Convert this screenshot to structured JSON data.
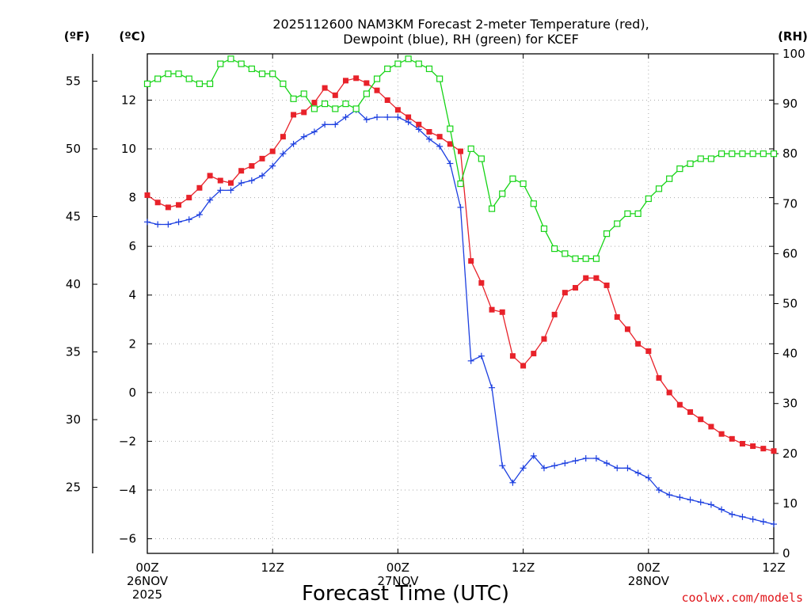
{
  "chart_data": {
    "type": "line",
    "title_lines": [
      "2025112600 NAM3KM Forecast 2-meter Temperature (red),",
      "Dewpoint (blue), RH (green) for KCEF"
    ],
    "xlabel": "Forecast Time (UTC)",
    "credit": "coolwx.com/models",
    "units": {
      "f": "(ºF)",
      "c": "(ºC)",
      "rh": "(RH)"
    },
    "x_unit": "forecast hour",
    "xlim": [
      0,
      60
    ],
    "c_axis": {
      "range": [
        -6.6,
        13.9
      ],
      "ticks": [
        -6,
        -4,
        -2,
        0,
        2,
        4,
        6,
        8,
        10,
        12
      ],
      "tick_labels": [
        "−6",
        "−4",
        "−2",
        "0",
        "2",
        "4",
        "6",
        "8",
        "10",
        "12"
      ]
    },
    "f_axis": {
      "ticks": [
        25,
        30,
        35,
        40,
        45,
        50,
        55
      ],
      "tick_labels": [
        "25",
        "30",
        "35",
        "40",
        "45",
        "50",
        "55"
      ]
    },
    "rh_axis": {
      "range": [
        0,
        100
      ],
      "ticks": [
        0,
        10,
        20,
        30,
        40,
        50,
        60,
        70,
        80,
        90,
        100
      ],
      "tick_labels": [
        "0",
        "10",
        "20",
        "30",
        "40",
        "50",
        "60",
        "70",
        "80",
        "90",
        "100"
      ]
    },
    "x_ticks": [
      {
        "hour": 0,
        "lines": [
          "00Z",
          "26NOV",
          "2025"
        ]
      },
      {
        "hour": 12,
        "lines": [
          "12Z"
        ]
      },
      {
        "hour": 24,
        "lines": [
          "00Z",
          "27NOV"
        ]
      },
      {
        "hour": 36,
        "lines": [
          "12Z"
        ]
      },
      {
        "hour": 48,
        "lines": [
          "00Z",
          "28NOV"
        ]
      },
      {
        "hour": 60,
        "lines": [
          "12Z"
        ]
      }
    ],
    "grid": true,
    "colors": {
      "temperature": "#e8222a",
      "dewpoint": "#1c3fe0",
      "rh": "#16d416",
      "grid": "#aaaaaa",
      "credit": "#e0151a"
    },
    "series": [
      {
        "name": "Temperature",
        "units": "°C",
        "marker": "filled-square",
        "color": "#e8222a",
        "x": [
          0,
          1,
          2,
          3,
          4,
          5,
          6,
          7,
          8,
          9,
          10,
          11,
          12,
          13,
          14,
          15,
          16,
          17,
          18,
          19,
          20,
          21,
          22,
          23,
          24,
          25,
          26,
          27,
          28,
          29,
          30,
          31,
          32,
          33,
          34,
          35,
          36,
          37,
          38,
          39,
          40,
          41,
          42,
          43,
          44,
          45,
          46,
          47,
          48,
          49,
          50,
          51,
          52,
          53,
          54,
          55,
          56,
          57,
          58,
          59,
          60
        ],
        "values": [
          8.1,
          7.8,
          7.6,
          7.7,
          8.0,
          8.4,
          8.9,
          8.7,
          8.6,
          9.1,
          9.3,
          9.6,
          9.9,
          10.5,
          11.4,
          11.5,
          11.9,
          12.5,
          12.2,
          12.8,
          12.9,
          12.7,
          12.4,
          12.0,
          11.6,
          11.3,
          11.0,
          10.7,
          10.5,
          10.2,
          9.9,
          5.4,
          4.5,
          3.4,
          3.3,
          1.5,
          1.1,
          1.6,
          2.2,
          3.2,
          4.1,
          4.3,
          4.7,
          4.7,
          4.4,
          3.1,
          2.6,
          2.0,
          1.7,
          0.6,
          0.0,
          -0.5,
          -0.8,
          -1.1,
          -1.4,
          -1.7,
          -1.9,
          -2.1,
          -2.2,
          -2.3,
          -2.4
        ]
      },
      {
        "name": "Dewpoint",
        "units": "°C",
        "marker": "plus",
        "color": "#1c3fe0",
        "x": [
          0,
          1,
          2,
          3,
          4,
          5,
          6,
          7,
          8,
          9,
          10,
          11,
          12,
          13,
          14,
          15,
          16,
          17,
          18,
          19,
          20,
          21,
          22,
          23,
          24,
          25,
          26,
          27,
          28,
          29,
          30,
          31,
          32,
          33,
          34,
          35,
          36,
          37,
          38,
          39,
          40,
          41,
          42,
          43,
          44,
          45,
          46,
          47,
          48,
          49,
          50,
          51,
          52,
          53,
          54,
          55,
          56,
          57,
          58,
          59,
          60
        ],
        "values": [
          7.0,
          6.9,
          6.9,
          7.0,
          7.1,
          7.3,
          7.9,
          8.3,
          8.3,
          8.6,
          8.7,
          8.9,
          9.3,
          9.8,
          10.2,
          10.5,
          10.7,
          11.0,
          11.0,
          11.3,
          11.6,
          11.2,
          11.3,
          11.3,
          11.3,
          11.1,
          10.8,
          10.4,
          10.1,
          9.4,
          7.6,
          1.3,
          1.5,
          0.2,
          -3.0,
          -3.7,
          -3.1,
          -2.6,
          -3.1,
          -3.0,
          -2.9,
          -2.8,
          -2.7,
          -2.7,
          -2.9,
          -3.1,
          -3.1,
          -3.3,
          -3.5,
          -4.0,
          -4.2,
          -4.3,
          -4.4,
          -4.5,
          -4.6,
          -4.8,
          -5.0,
          -5.1,
          -5.2,
          -5.3,
          -5.4
        ]
      },
      {
        "name": "RH",
        "units": "%",
        "marker": "open-square",
        "color": "#16d416",
        "x": [
          0,
          1,
          2,
          3,
          4,
          5,
          6,
          7,
          8,
          9,
          10,
          11,
          12,
          13,
          14,
          15,
          16,
          17,
          18,
          19,
          20,
          21,
          22,
          23,
          24,
          25,
          26,
          27,
          28,
          29,
          30,
          31,
          32,
          33,
          34,
          35,
          36,
          37,
          38,
          39,
          40,
          41,
          42,
          43,
          44,
          45,
          46,
          47,
          48,
          49,
          50,
          51,
          52,
          53,
          54,
          55,
          56,
          57,
          58,
          59,
          60
        ],
        "values": [
          94,
          95,
          96,
          96,
          95,
          94,
          94,
          98,
          99,
          98,
          97,
          96,
          96,
          94,
          91,
          92,
          89,
          90,
          89,
          90,
          89,
          92,
          95,
          97,
          98,
          99,
          98,
          97,
          95,
          85,
          74,
          81,
          79,
          69,
          72,
          75,
          74,
          70,
          65,
          61,
          60,
          59,
          59,
          59,
          64,
          66,
          68,
          68,
          71,
          73,
          75,
          77,
          78,
          79,
          79,
          80,
          80,
          80,
          80,
          80,
          80
        ]
      }
    ]
  }
}
